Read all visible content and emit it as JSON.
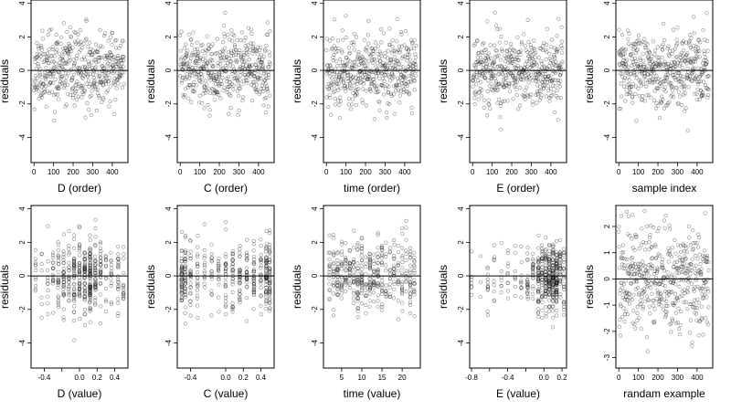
{
  "figure": {
    "ylabel": "residuals",
    "panels": [
      {
        "type": "scatter",
        "xlabel": "D (order)",
        "ylabel": "residuals",
        "xlim": [
          -15,
          480
        ],
        "ylim": [
          -5.5,
          4.2
        ],
        "xticks": [
          0,
          100,
          200,
          300,
          400
        ],
        "yticks": [
          -4,
          -2,
          0,
          2,
          4
        ],
        "hline": 0,
        "gen": {
          "kind": "order",
          "n": 460,
          "seed": 11,
          "sd": 1.05,
          "xmax": 460
        }
      },
      {
        "type": "scatter",
        "xlabel": "C (order)",
        "ylabel": "residuals",
        "xlim": [
          -15,
          480
        ],
        "ylim": [
          -5.5,
          4.2
        ],
        "xticks": [
          0,
          100,
          200,
          300,
          400
        ],
        "yticks": [
          -4,
          -2,
          0,
          2,
          4
        ],
        "hline": 0,
        "gen": {
          "kind": "order",
          "n": 460,
          "seed": 23,
          "sd": 1.05,
          "xmax": 460
        }
      },
      {
        "type": "scatter",
        "xlabel": "time (order)",
        "ylabel": "residuals",
        "xlim": [
          -15,
          480
        ],
        "ylim": [
          -5.5,
          4.2
        ],
        "xticks": [
          0,
          100,
          200,
          300,
          400
        ],
        "yticks": [
          -4,
          -2,
          0,
          2,
          4
        ],
        "hline": 0,
        "gen": {
          "kind": "order",
          "n": 460,
          "seed": 37,
          "sd": 1.05,
          "xmax": 460
        }
      },
      {
        "type": "scatter",
        "xlabel": "E (order)",
        "ylabel": "residuals",
        "xlim": [
          -15,
          480
        ],
        "ylim": [
          -5.5,
          4.2
        ],
        "xticks": [
          0,
          100,
          200,
          300,
          400
        ],
        "yticks": [
          -4,
          -2,
          0,
          2,
          4
        ],
        "hline": 0,
        "gen": {
          "kind": "order",
          "n": 460,
          "seed": 41,
          "sd": 1.05,
          "xmax": 460
        }
      },
      {
        "type": "scatter",
        "xlabel": "sample index",
        "ylabel": "residuals",
        "xlim": [
          -15,
          480
        ],
        "ylim": [
          -5.5,
          4.2
        ],
        "xticks": [
          0,
          100,
          200,
          300,
          400
        ],
        "yticks": [
          -4,
          -2,
          0,
          2,
          4
        ],
        "hline": 0,
        "gen": {
          "kind": "order",
          "n": 460,
          "seed": 53,
          "sd": 1.05,
          "xmax": 460
        }
      },
      {
        "type": "scatter",
        "xlabel": "D (value)",
        "ylabel": "residuals",
        "xlim": [
          -0.55,
          0.55
        ],
        "ylim": [
          -5.5,
          4.2
        ],
        "xticks": [
          -0.4,
          -0.2,
          0.0,
          0.2,
          0.4
        ],
        "xticklabels": [
          "-0.4",
          "",
          "0.0",
          "0.2",
          "0.4"
        ],
        "yticks": [
          -4,
          -2,
          0,
          2,
          4
        ],
        "hline": 0,
        "gen": {
          "kind": "discrete",
          "n": 460,
          "seed": 67,
          "sd": 1.05,
          "levels": [
            -0.5,
            -0.43,
            -0.36,
            -0.3,
            -0.24,
            -0.18,
            -0.12,
            -0.06,
            0.0,
            0.06,
            0.12,
            0.18,
            0.24,
            0.3,
            0.36,
            0.44,
            0.5
          ],
          "weights": [
            1,
            1,
            1,
            2,
            2,
            3,
            3,
            4,
            4,
            4,
            5,
            3,
            2,
            1,
            1,
            2,
            1
          ]
        }
      },
      {
        "type": "scatter",
        "xlabel": "C (value)",
        "ylabel": "residuals",
        "xlim": [
          -0.55,
          0.55
        ],
        "ylim": [
          -5.5,
          4.2
        ],
        "xticks": [
          -0.4,
          0.0,
          0.2,
          0.4
        ],
        "xticklabels": [
          "-0.4",
          "0.0",
          "0.2",
          "0.4"
        ],
        "yticks": [
          -4,
          -2,
          0,
          2,
          4
        ],
        "hline": 0,
        "gen": {
          "kind": "discrete",
          "n": 430,
          "seed": 79,
          "sd": 1.05,
          "levels": [
            -0.5,
            -0.46,
            -0.4,
            -0.32,
            -0.24,
            -0.16,
            -0.08,
            0.0,
            0.08,
            0.16,
            0.24,
            0.32,
            0.4,
            0.46,
            0.5
          ],
          "weights": [
            3,
            2,
            2,
            1,
            1,
            1,
            1,
            2,
            2,
            2,
            2,
            2,
            2,
            3,
            3
          ]
        }
      },
      {
        "type": "scatter",
        "xlabel": "time (value)",
        "ylabel": "residuals",
        "xlim": [
          0.5,
          24.5
        ],
        "ylim": [
          -5.5,
          4.2
        ],
        "xticks": [
          5,
          10,
          15,
          20
        ],
        "yticks": [
          -4,
          -2,
          0,
          2,
          4
        ],
        "hline": 0,
        "gen": {
          "kind": "discrete",
          "n": 430,
          "seed": 97,
          "sd": 1.05,
          "levels": [
            2,
            3,
            4,
            5,
            6,
            7,
            8,
            9,
            10,
            11,
            12,
            13,
            14,
            15,
            16,
            17,
            18,
            19,
            20,
            21,
            22,
            23
          ],
          "weights": [
            1,
            1,
            1,
            1,
            1,
            1,
            1,
            1,
            1,
            1,
            2,
            1,
            1,
            1,
            1,
            1,
            1,
            1,
            1,
            1,
            1,
            1
          ]
        }
      },
      {
        "type": "scatter",
        "xlabel": "E (value)",
        "ylabel": "residuals",
        "xlim": [
          -0.82,
          0.25
        ],
        "ylim": [
          -5.5,
          4.2
        ],
        "xticks": [
          -0.8,
          -0.6,
          -0.4,
          -0.2,
          0.0,
          0.2
        ],
        "xticklabels": [
          "-0.8",
          "",
          "-0.4",
          "",
          "0.0",
          "0.2"
        ],
        "yticks": [
          -4,
          -2,
          0,
          2,
          4
        ],
        "hline": 0,
        "gen": {
          "kind": "discrete",
          "n": 460,
          "seed": 101,
          "sd": 1.05,
          "levels": [
            -0.8,
            -0.7,
            -0.62,
            -0.55,
            -0.47,
            -0.4,
            -0.32,
            -0.25,
            -0.18,
            -0.12,
            -0.06,
            -0.02,
            0.02,
            0.06,
            0.1,
            0.14,
            0.18,
            0.22
          ],
          "weights": [
            1,
            1,
            1,
            1,
            1,
            1,
            1,
            2,
            2,
            3,
            4,
            5,
            6,
            7,
            8,
            7,
            5,
            3
          ]
        }
      },
      {
        "type": "scatter",
        "xlabel": "randam example",
        "ylabel": "residuals",
        "xlim": [
          -15,
          480
        ],
        "ylim": [
          -3.4,
          2.8
        ],
        "xticks": [
          0,
          100,
          200,
          300,
          400
        ],
        "yticks": [
          -3,
          -2,
          -1,
          0,
          1,
          2
        ],
        "hline": 0,
        "gen": {
          "kind": "order",
          "n": 460,
          "seed": 131,
          "sd": 1.0,
          "xmax": 460
        }
      }
    ]
  },
  "chart_data": [
    {
      "type": "scatter",
      "xlabel": "D (order)",
      "ylabel": "residuals",
      "xlim": [
        0,
        460
      ],
      "ylim": [
        -5,
        4
      ],
      "y_center": 0,
      "y_sd_approx": 1.05,
      "n_points_approx": 460
    },
    {
      "type": "scatter",
      "xlabel": "C (order)",
      "ylabel": "residuals",
      "xlim": [
        0,
        460
      ],
      "ylim": [
        -5,
        4
      ],
      "y_center": 0,
      "y_sd_approx": 1.05,
      "n_points_approx": 460
    },
    {
      "type": "scatter",
      "xlabel": "time (order)",
      "ylabel": "residuals",
      "xlim": [
        0,
        460
      ],
      "ylim": [
        -5,
        4
      ],
      "y_center": 0,
      "y_sd_approx": 1.05,
      "n_points_approx": 460
    },
    {
      "type": "scatter",
      "xlabel": "E (order)",
      "ylabel": "residuals",
      "xlim": [
        0,
        460
      ],
      "ylim": [
        -5,
        4
      ],
      "y_center": 0,
      "y_sd_approx": 1.05,
      "n_points_approx": 460
    },
    {
      "type": "scatter",
      "xlabel": "sample index",
      "ylabel": "residuals",
      "xlim": [
        0,
        460
      ],
      "ylim": [
        -5,
        4
      ],
      "y_center": 0,
      "y_sd_approx": 1.05,
      "n_points_approx": 460
    },
    {
      "type": "scatter",
      "xlabel": "D (value)",
      "ylabel": "residuals",
      "xlim": [
        -0.5,
        0.5
      ],
      "ylim": [
        -5,
        4
      ],
      "y_center": 0,
      "y_sd_approx": 1.05,
      "n_points_approx": 460
    },
    {
      "type": "scatter",
      "xlabel": "C (value)",
      "ylabel": "residuals",
      "xlim": [
        -0.5,
        0.5
      ],
      "ylim": [
        -5,
        4
      ],
      "y_center": 0,
      "y_sd_approx": 1.05,
      "n_points_approx": 430
    },
    {
      "type": "scatter",
      "xlabel": "time (value)",
      "ylabel": "residuals",
      "xlim": [
        2,
        23
      ],
      "ylim": [
        -5,
        4
      ],
      "y_center": 0,
      "y_sd_approx": 1.05,
      "n_points_approx": 430
    },
    {
      "type": "scatter",
      "xlabel": "E (value)",
      "ylabel": "residuals",
      "xlim": [
        -0.8,
        0.22
      ],
      "ylim": [
        -5,
        4
      ],
      "y_center": 0,
      "y_sd_approx": 1.05,
      "n_points_approx": 460
    },
    {
      "type": "scatter",
      "xlabel": "randam example",
      "ylabel": "residuals",
      "xlim": [
        0,
        460
      ],
      "ylim": [
        -3,
        2.5
      ],
      "y_center": 0,
      "y_sd_approx": 1.0,
      "n_points_approx": 460
    }
  ]
}
